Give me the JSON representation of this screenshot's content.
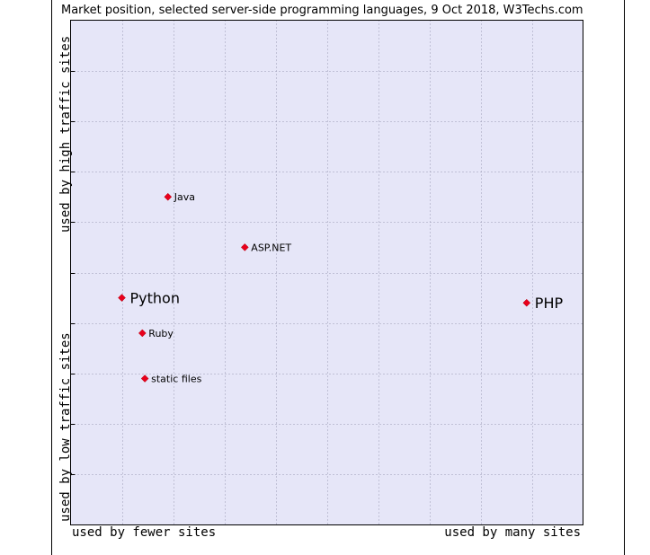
{
  "chart_data": {
    "type": "scatter",
    "title": "Market position, selected server-side programming languages, 9 Oct 2018, W3Techs.com",
    "x_axis": {
      "low_label": "used by fewer sites",
      "high_label": "used by many sites",
      "range": [
        0,
        10
      ]
    },
    "y_axis": {
      "low_label": "used by low traffic sites",
      "high_label": "used by high traffic sites",
      "range": [
        0,
        10
      ]
    },
    "grid": true,
    "points": [
      {
        "label": "Java",
        "x": 1.9,
        "y": 6.5,
        "emphasis": false
      },
      {
        "label": "ASP.NET",
        "x": 3.4,
        "y": 5.5,
        "emphasis": false
      },
      {
        "label": "Python",
        "x": 1.0,
        "y": 4.5,
        "emphasis": true
      },
      {
        "label": "PHP",
        "x": 8.9,
        "y": 4.4,
        "emphasis": true
      },
      {
        "label": "Ruby",
        "x": 1.4,
        "y": 3.8,
        "emphasis": false
      },
      {
        "label": "static files",
        "x": 1.45,
        "y": 2.9,
        "emphasis": false
      }
    ],
    "colors": {
      "plot_background": "#e6e6f8",
      "grid": "#9a9ab4",
      "point": "#e8001c"
    }
  }
}
